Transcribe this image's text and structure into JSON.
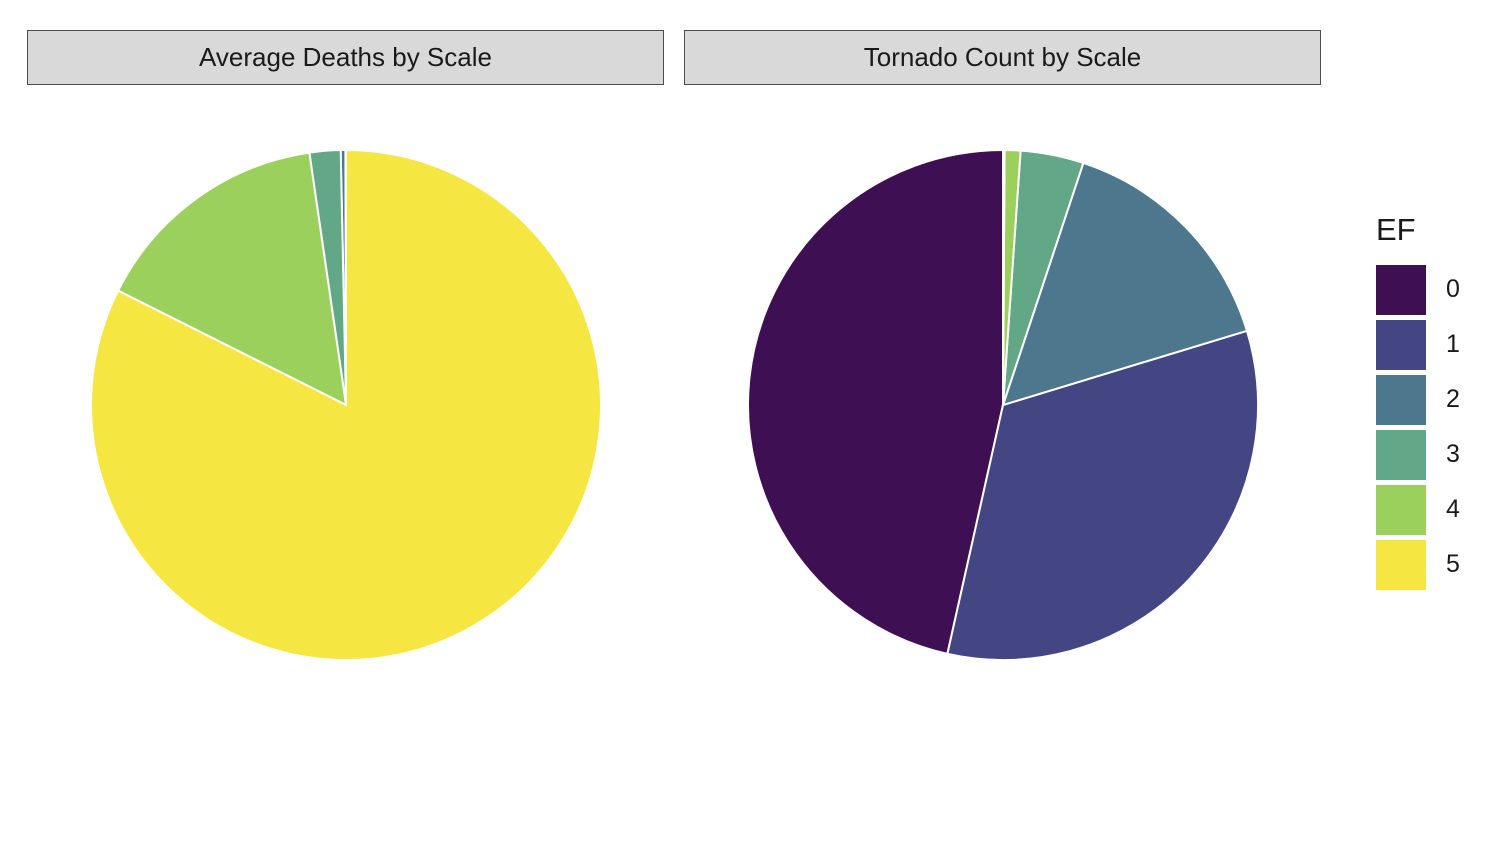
{
  "chart_data": [
    {
      "type": "pie",
      "title": "Average Deaths by Scale",
      "categories": [
        "0",
        "1",
        "2",
        "3",
        "4",
        "5"
      ],
      "values": [
        0.0,
        0.02,
        0.15,
        1.0,
        7.8,
        42.0
      ]
    },
    {
      "type": "pie",
      "title": "Tornado Count by Scale",
      "categories": [
        "0",
        "1",
        "2",
        "3",
        "4",
        "5"
      ],
      "values": [
        46.5,
        33.2,
        15.2,
        4.0,
        1.0,
        0.1
      ]
    }
  ],
  "legend": {
    "title": "EF",
    "placement": "right",
    "items": [
      {
        "label": "0",
        "color": "#3e0f52"
      },
      {
        "label": "1",
        "color": "#434683"
      },
      {
        "label": "2",
        "color": "#4d778c"
      },
      {
        "label": "3",
        "color": "#62a886"
      },
      {
        "label": "4",
        "color": "#9bd05c"
      },
      {
        "label": "5",
        "color": "#f5e642"
      }
    ]
  }
}
